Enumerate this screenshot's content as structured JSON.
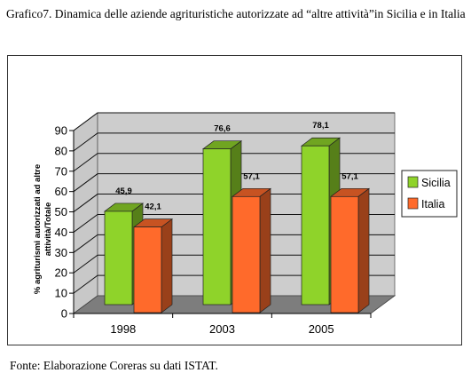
{
  "caption": "Grafico7. Dinamica delle aziende agrituristiche autorizzate ad “altre attività”in Sicilia e in  Italia",
  "source": "Fonte:  Elaborazione Coreras su dati ISTAT.",
  "chart_data": {
    "type": "bar",
    "title": "",
    "xlabel": "",
    "ylabel": "% agriturismi autorizzati ad altre attività/Totale",
    "ylim": [
      0,
      90
    ],
    "yticks": [
      "0",
      "10",
      "20",
      "30",
      "40",
      "50",
      "60",
      "70",
      "80",
      "90"
    ],
    "categories": [
      "1998",
      "2003",
      "2005"
    ],
    "series": [
      {
        "name": "Sicilia",
        "values": [
          45.9,
          76.6,
          78.1
        ],
        "labels": [
          "45,9",
          "76,6",
          "78,1"
        ],
        "color": "#8fd32a"
      },
      {
        "name": "Italia",
        "values": [
          42.1,
          57.1,
          57.1
        ],
        "labels": [
          "42,1",
          "57,1",
          "57,1"
        ],
        "color": "#ff6a2b"
      }
    ],
    "legend": "right",
    "grid": true,
    "style": "3d"
  }
}
